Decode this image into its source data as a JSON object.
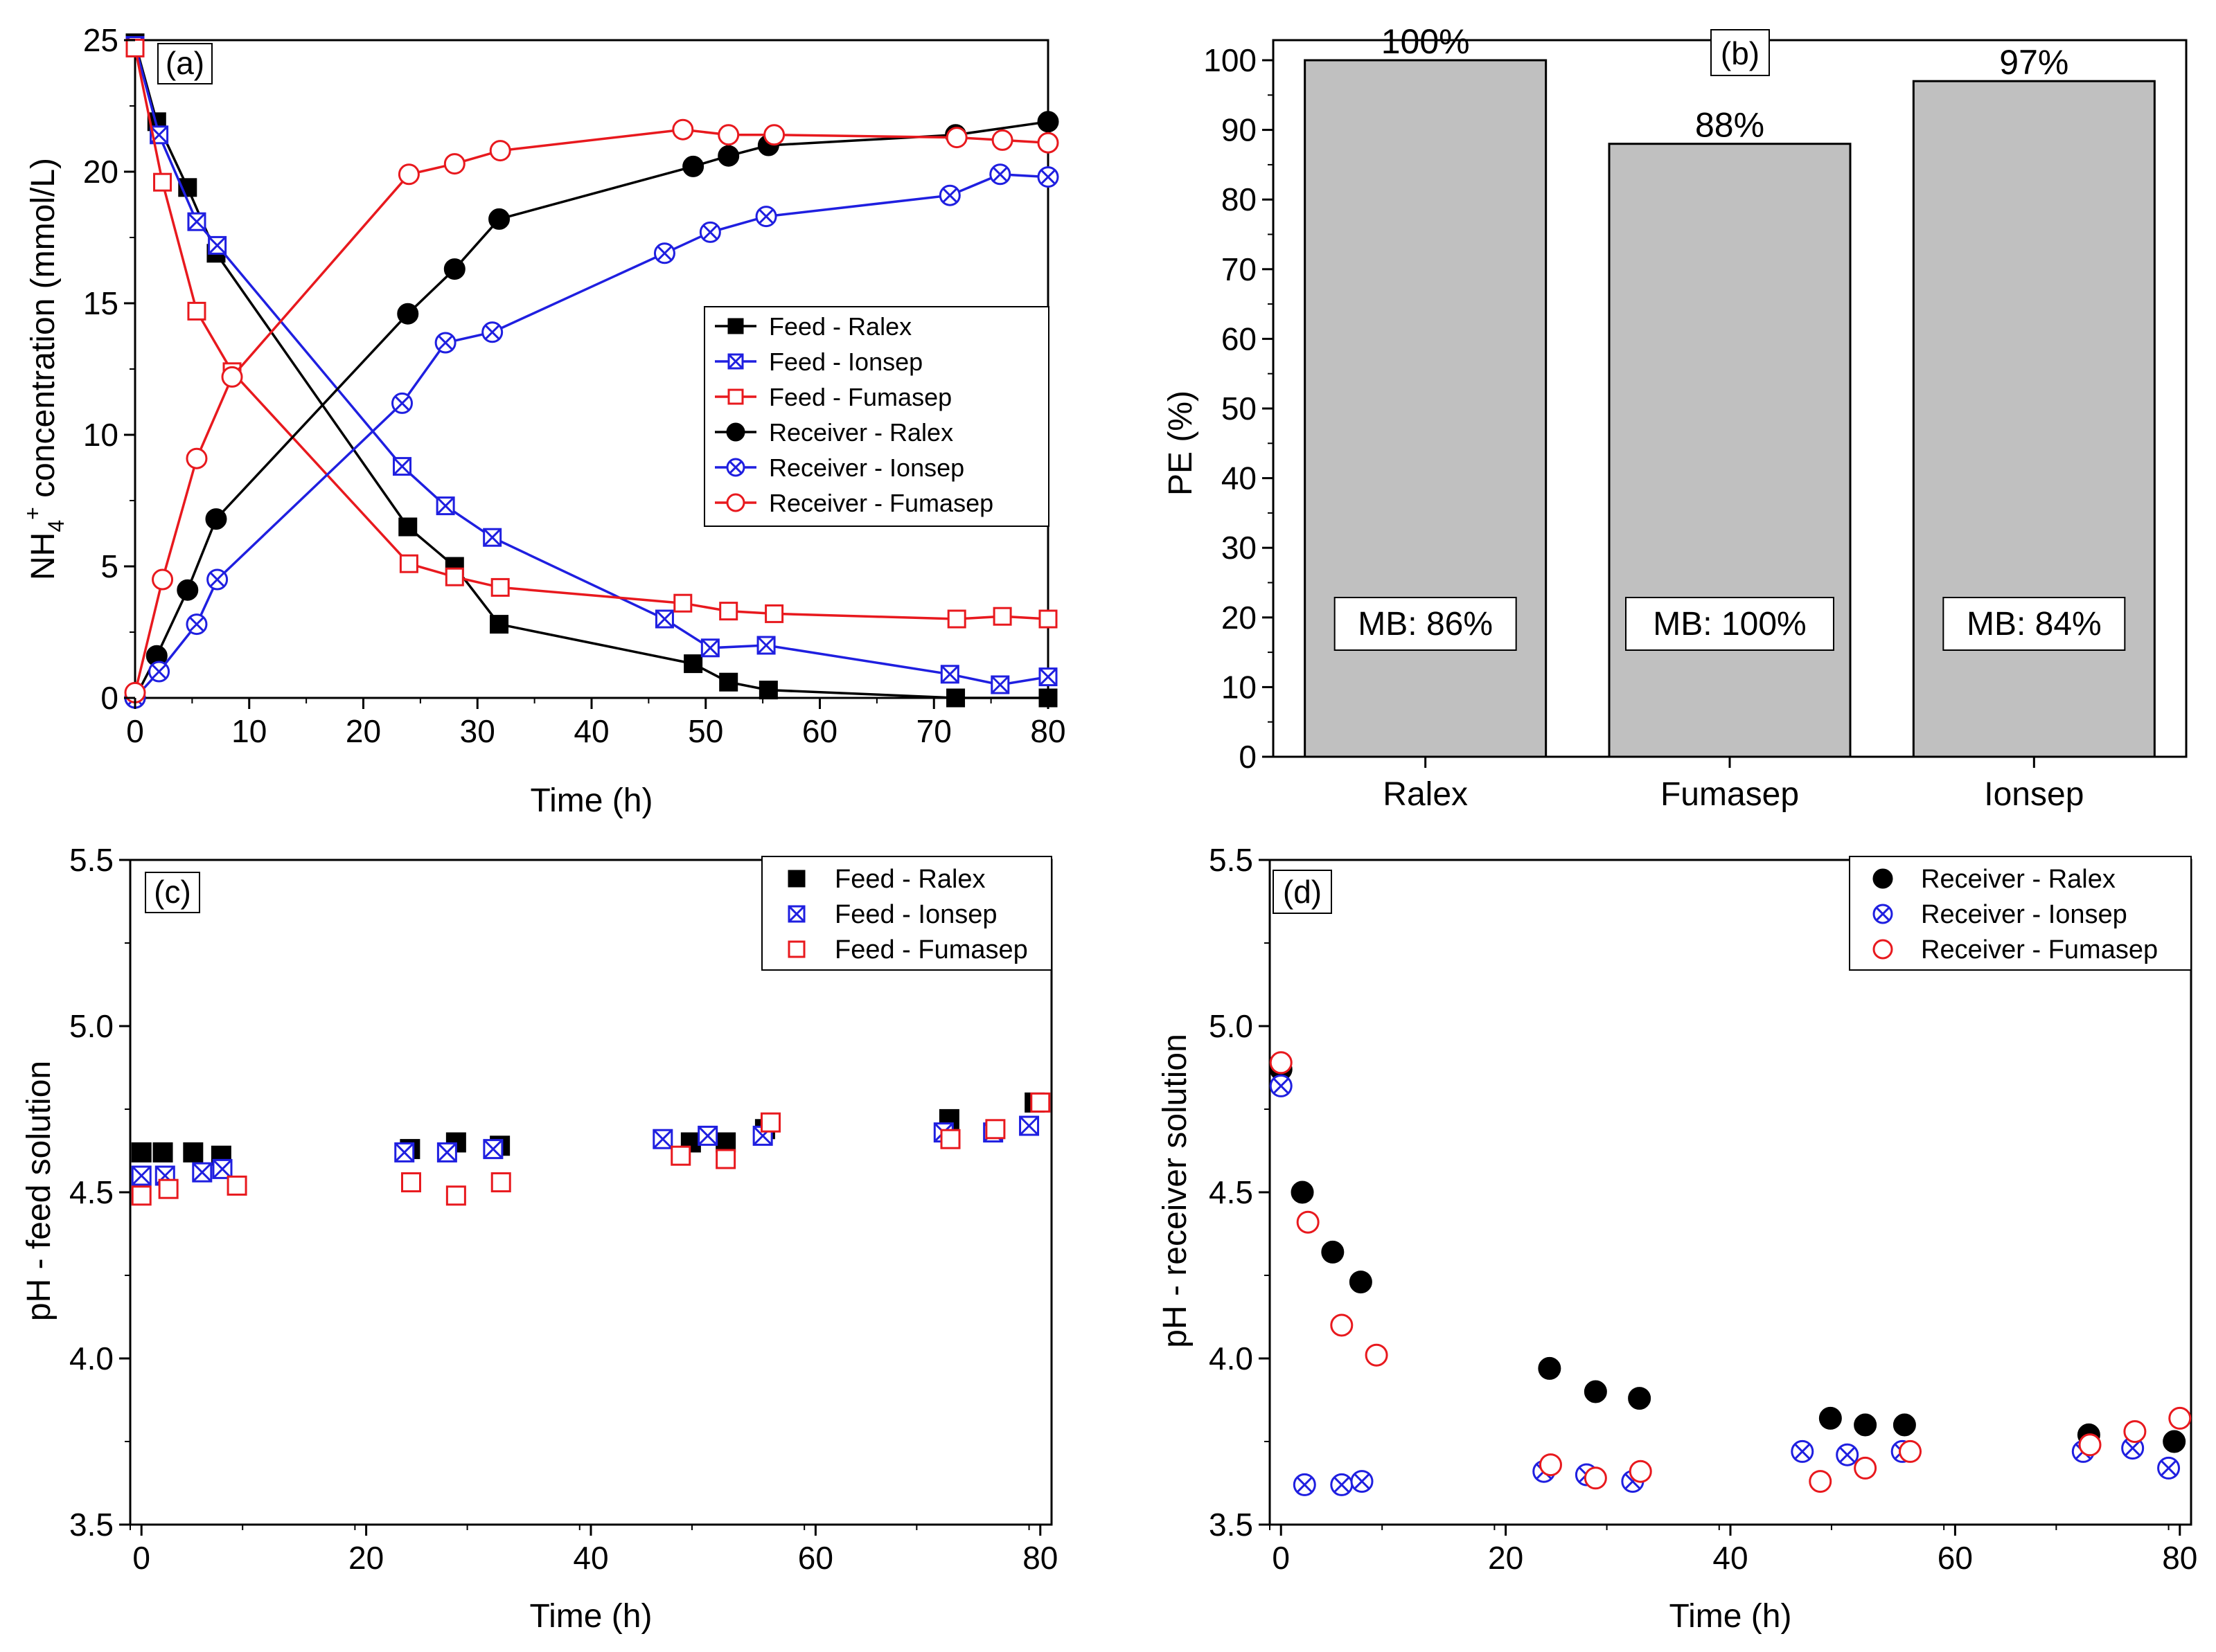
{
  "colors": {
    "black": "#000000",
    "blue": "#1f1fe0",
    "red": "#e8191e",
    "bar": "#c0c0c0"
  },
  "chart_data": [
    {
      "panel": "(a)",
      "type": "line",
      "xlabel": "Time (h)",
      "ylabel": "NH4+ concentration (mmol/L)",
      "ylabel_main": "NH",
      "ylabel_sub": "4",
      "ylabel_sup": "+",
      "ylabel_rest": " concentration (mmol/L)",
      "xlim": [
        0,
        80
      ],
      "ylim": [
        0,
        25
      ],
      "xticks": [
        0,
        10,
        20,
        30,
        40,
        50,
        60,
        70,
        80
      ],
      "yticks": [
        0,
        5,
        10,
        15,
        20,
        25
      ],
      "series": [
        {
          "name": "Feed - Ralex",
          "color": "black",
          "marker": "square-filled",
          "x": [
            0,
            1.9,
            4.6,
            7.1,
            23.9,
            28,
            31.9,
            48.9,
            52,
            55.5,
            71.9,
            80
          ],
          "y": [
            24.9,
            21.9,
            19.4,
            16.9,
            6.5,
            5.0,
            2.8,
            1.3,
            0.6,
            0.3,
            0.0,
            0.0
          ]
        },
        {
          "name": "Feed - Ionsep",
          "color": "blue",
          "marker": "square-x",
          "x": [
            0,
            2.1,
            5.4,
            7.2,
            23.4,
            27.2,
            31.3,
            46.4,
            50.4,
            55.3,
            71.4,
            75.8,
            80
          ],
          "y": [
            24.8,
            21.4,
            18.1,
            17.2,
            8.8,
            7.3,
            6.1,
            3.0,
            1.9,
            2.0,
            0.9,
            0.5,
            0.8
          ]
        },
        {
          "name": "Feed - Fumasep",
          "color": "red",
          "marker": "square-open",
          "x": [
            0,
            2.4,
            5.4,
            8.5,
            24,
            28,
            32,
            48,
            52,
            56,
            72,
            76,
            80
          ],
          "y": [
            24.7,
            19.6,
            14.7,
            12.4,
            5.1,
            4.6,
            4.2,
            3.6,
            3.3,
            3.2,
            3.0,
            3.1,
            3.0
          ]
        },
        {
          "name": "Receiver - Ralex",
          "color": "black",
          "marker": "circle-filled",
          "x": [
            0,
            1.9,
            4.6,
            7.1,
            23.9,
            28,
            31.9,
            48.9,
            52,
            55.5,
            71.9,
            80
          ],
          "y": [
            0,
            1.6,
            4.1,
            6.8,
            14.6,
            16.3,
            18.2,
            20.2,
            20.6,
            21.0,
            21.4,
            21.9
          ]
        },
        {
          "name": "Receiver - Ionsep",
          "color": "blue",
          "marker": "circle-x",
          "x": [
            0,
            2.1,
            5.4,
            7.2,
            23.4,
            27.2,
            31.3,
            46.4,
            50.4,
            55.3,
            71.4,
            75.8,
            80
          ],
          "y": [
            0,
            1.0,
            2.8,
            4.5,
            11.2,
            13.5,
            13.9,
            16.9,
            17.7,
            18.3,
            19.1,
            19.9,
            19.8
          ]
        },
        {
          "name": "Receiver - Fumasep",
          "color": "red",
          "marker": "circle-open",
          "x": [
            0,
            2.4,
            5.4,
            8.5,
            24,
            28,
            32,
            48,
            52,
            56,
            72,
            76,
            80
          ],
          "y": [
            0.2,
            4.5,
            9.1,
            12.2,
            19.9,
            20.3,
            20.8,
            21.6,
            21.4,
            21.4,
            21.3,
            21.2,
            21.1
          ]
        }
      ]
    },
    {
      "panel": "(b)",
      "type": "bar",
      "ylabel": "PE (%)",
      "ylim": [
        0,
        100
      ],
      "yticks": [
        0,
        10,
        20,
        30,
        40,
        50,
        60,
        70,
        80,
        90,
        100
      ],
      "categories": [
        "Ralex",
        "Fumasep",
        "Ionsep"
      ],
      "values": [
        100,
        88,
        97
      ],
      "value_labels": [
        "100%",
        "88%",
        "97%"
      ],
      "annotations": [
        "MB: 86%",
        "MB: 100%",
        "MB: 84%"
      ]
    },
    {
      "panel": "(c)",
      "type": "scatter",
      "xlabel": "Time (h)",
      "ylabel": "pH - feed solution",
      "xlim": [
        -1,
        81
      ],
      "ylim": [
        3.5,
        5.5
      ],
      "xticks": [
        0,
        20,
        40,
        60,
        80
      ],
      "yticks": [
        3.5,
        4.0,
        4.5,
        5.0,
        5.5
      ],
      "series": [
        {
          "name": "Feed - Ralex",
          "color": "black",
          "marker": "square-filled",
          "x": [
            0,
            1.9,
            4.6,
            7.1,
            23.9,
            28,
            31.9,
            48.9,
            52,
            55.5,
            71.9,
            79.5
          ],
          "y": [
            4.62,
            4.62,
            4.62,
            4.61,
            4.63,
            4.65,
            4.64,
            4.65,
            4.65,
            4.69,
            4.72,
            4.77
          ]
        },
        {
          "name": "Feed - Ionsep",
          "color": "blue",
          "marker": "square-x",
          "x": [
            0,
            2.1,
            5.4,
            7.2,
            23.4,
            27.2,
            31.3,
            46.4,
            50.4,
            55.3,
            71.4,
            75.8,
            79
          ],
          "y": [
            4.55,
            4.55,
            4.56,
            4.57,
            4.62,
            4.62,
            4.63,
            4.66,
            4.67,
            4.67,
            4.68,
            4.68,
            4.7
          ]
        },
        {
          "name": "Feed - Fumasep",
          "color": "red",
          "marker": "square-open",
          "x": [
            0,
            2.4,
            8.5,
            24,
            28,
            32,
            48,
            52,
            56,
            72,
            76,
            80
          ],
          "y": [
            4.49,
            4.51,
            4.52,
            4.53,
            4.49,
            4.53,
            4.61,
            4.6,
            4.71,
            4.66,
            4.69,
            4.77
          ]
        }
      ]
    },
    {
      "panel": "(d)",
      "type": "scatter",
      "xlabel": "Time (h)",
      "ylabel": "pH - receiver solution",
      "xlim": [
        -1,
        81
      ],
      "ylim": [
        3.5,
        5.5
      ],
      "xticks": [
        0,
        20,
        40,
        60,
        80
      ],
      "yticks": [
        3.5,
        4.0,
        4.5,
        5.0,
        5.5
      ],
      "series": [
        {
          "name": "Receiver - Ralex",
          "color": "black",
          "marker": "circle-filled",
          "x": [
            0,
            1.9,
            4.6,
            7.1,
            23.9,
            28,
            31.9,
            48.9,
            52,
            55.5,
            71.9,
            79.5
          ],
          "y": [
            4.87,
            4.5,
            4.32,
            4.23,
            3.97,
            3.9,
            3.88,
            3.82,
            3.8,
            3.8,
            3.77,
            3.75
          ]
        },
        {
          "name": "Receiver - Ionsep",
          "color": "blue",
          "marker": "circle-x",
          "x": [
            0,
            2.1,
            5.4,
            7.2,
            23.4,
            27.2,
            31.3,
            46.4,
            50.4,
            55.3,
            71.4,
            75.8,
            79
          ],
          "y": [
            4.82,
            3.62,
            3.62,
            3.63,
            3.66,
            3.65,
            3.63,
            3.72,
            3.71,
            3.72,
            3.72,
            3.73,
            3.67
          ]
        },
        {
          "name": "Receiver - Fumasep",
          "color": "red",
          "marker": "circle-open",
          "x": [
            0,
            2.4,
            5.4,
            8.5,
            24,
            28,
            32,
            48,
            52,
            56,
            72,
            76,
            80
          ],
          "y": [
            4.89,
            4.41,
            4.1,
            4.01,
            3.68,
            3.64,
            3.66,
            3.63,
            3.67,
            3.72,
            3.74,
            3.78,
            3.82
          ]
        }
      ]
    }
  ]
}
